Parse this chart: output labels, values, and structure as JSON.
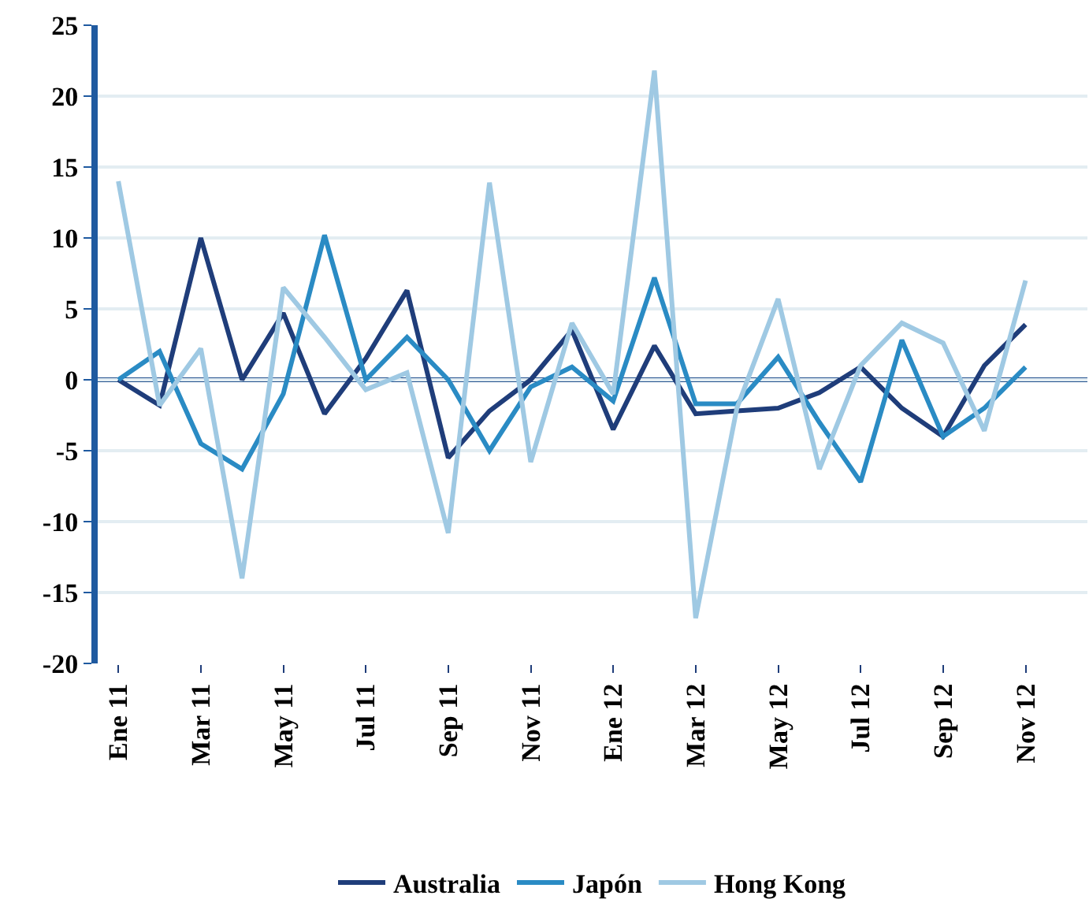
{
  "chart_data": {
    "type": "line",
    "categories": [
      "Ene 11",
      null,
      "Mar 11",
      null,
      "May 11",
      null,
      "Jul 11",
      null,
      "Sep 11",
      null,
      "Nov 11",
      null,
      "Ene 12",
      null,
      "Mar 12",
      null,
      "May 12",
      null,
      "Jul 12",
      null,
      "Sep 12",
      null,
      "Nov 12",
      null
    ],
    "series": [
      {
        "name": "Australia",
        "color": "#1f3d7a",
        "values": [
          0,
          -1.8,
          10,
          0,
          4.7,
          -2.4,
          1.5,
          6.3,
          -5.5,
          -2.2,
          0,
          3.5,
          -3.5,
          2.4,
          -2.4,
          -2.2,
          -2.0,
          -0.9,
          0.9,
          -2.0,
          -4.0,
          1.0,
          3.9,
          null
        ]
      },
      {
        "name": "Japón",
        "color": "#2a8bc4",
        "values": [
          0,
          2.0,
          -4.5,
          -6.3,
          -1,
          10.2,
          0,
          3.0,
          0,
          -5,
          -0.5,
          0.9,
          -1.5,
          7.2,
          -1.7,
          -1.7,
          1.6,
          -3,
          -7.2,
          2.8,
          -4.0,
          -2,
          0.9,
          null
        ]
      },
      {
        "name": "Hong Kong",
        "color": "#9fc9e3",
        "values": [
          14,
          -1.8,
          2.2,
          -14,
          6.5,
          3,
          -0.7,
          0.5,
          -10.8,
          13.9,
          -5.8,
          4.0,
          -1.0,
          21.8,
          -16.8,
          -2,
          5.7,
          -6.3,
          1.0,
          4.0,
          2.6,
          -3.6,
          7.0,
          null
        ]
      }
    ],
    "ylim": [
      -20,
      25
    ],
    "yticks": [
      -20,
      -15,
      -10,
      -5,
      0,
      5,
      10,
      15,
      20,
      25
    ],
    "ref_lines": [
      {
        "axis": "y",
        "value": 0,
        "color": "#1f4e8c"
      }
    ],
    "grid": "y",
    "legend": "bottom",
    "marker": "none",
    "line_style": "solid"
  }
}
